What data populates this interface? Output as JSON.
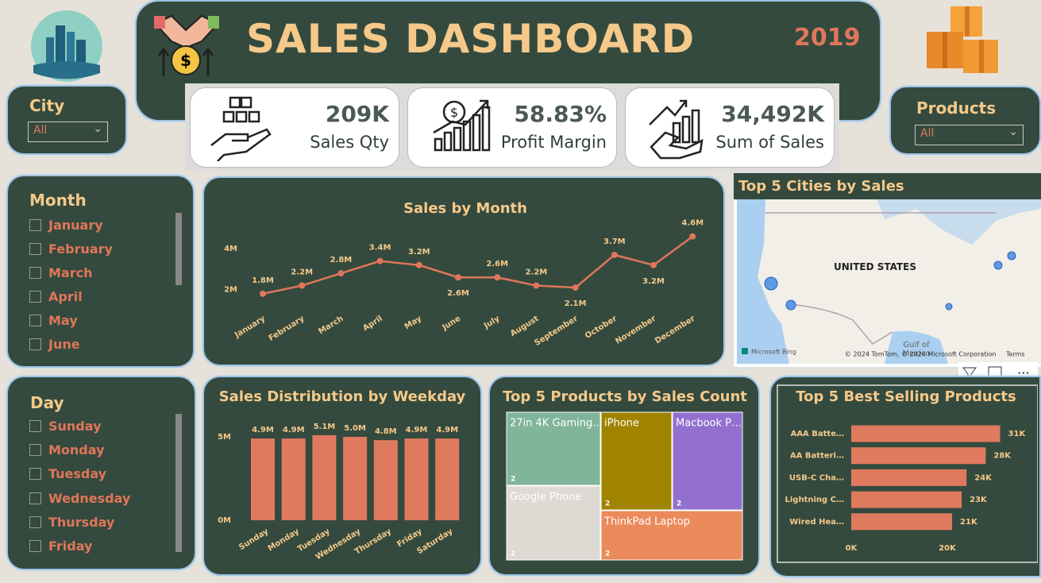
{
  "header": {
    "title": "SALES DASHBOARD",
    "year": "2019"
  },
  "kpis": [
    {
      "value": "209K",
      "label": "Sales Qty"
    },
    {
      "value": "58.83%",
      "label": "Profit Margin"
    },
    {
      "value": "34,492K",
      "label": "Sum of Sales"
    }
  ],
  "filters": {
    "city": {
      "title": "City",
      "selected": "All"
    },
    "products": {
      "title": "Products",
      "selected": "All"
    },
    "month": {
      "title": "Month",
      "options": [
        "January",
        "February",
        "March",
        "April",
        "May",
        "June"
      ]
    },
    "day": {
      "title": "Day",
      "options": [
        "Sunday",
        "Monday",
        "Tuesday",
        "Wednesday",
        "Thursday",
        "Friday"
      ]
    }
  },
  "map": {
    "title": "Top 5 Cities by Sales",
    "country": "UNITED STATES",
    "water": "Gulf of",
    "water2": "Mexico",
    "attribution": "© 2024 TomTom, © 2024 Microsoft Corporation",
    "terms": "Terms",
    "provider": "Microsoft Bing"
  },
  "chart_data": [
    {
      "type": "line",
      "title": "Sales by Month",
      "color": "#e0765a",
      "categories": [
        "January",
        "February",
        "March",
        "April",
        "May",
        "June",
        "July",
        "August",
        "September",
        "October",
        "November",
        "December"
      ],
      "values": [
        1.8,
        2.2,
        2.8,
        3.4,
        3.2,
        2.6,
        2.6,
        2.2,
        2.1,
        3.7,
        3.2,
        4.6
      ],
      "value_labels": [
        "1.8M",
        "2.2M",
        "2.8M",
        "3.4M",
        "3.2M",
        "2.6M",
        "2.6M",
        "2.2M",
        "2.1M",
        "3.7M",
        "3.2M",
        "4.6M"
      ],
      "ylim": [
        1.6,
        4.9
      ],
      "yticks": [
        {
          "value": 2,
          "label": "2M"
        },
        {
          "value": 4,
          "label": "4M"
        }
      ]
    },
    {
      "type": "bar",
      "title": "Sales Distribution by Weekday",
      "color": "#e07a5f",
      "categories": [
        "Sunday",
        "Monday",
        "Tuesday",
        "Wednesday",
        "Thursday",
        "Friday",
        "Saturday"
      ],
      "values": [
        4.9,
        4.9,
        5.1,
        5.0,
        4.8,
        4.9,
        4.9
      ],
      "value_labels": [
        "4.9M",
        "4.9M",
        "5.1M",
        "5.0M",
        "4.8M",
        "4.9M",
        "4.9M"
      ],
      "ylim": [
        0,
        5.5
      ],
      "yticks": [
        {
          "value": 0,
          "label": "0M"
        },
        {
          "value": 5,
          "label": "5M"
        }
      ]
    },
    {
      "type": "treemap",
      "title": "Top 5 Products by Sales Count",
      "categories": [
        "27in 4K Gaming…",
        "Google Phone",
        "iPhone",
        "Macbook P…",
        "ThinkPad Laptop"
      ],
      "values": [
        2,
        2,
        2,
        2,
        2
      ],
      "colors": [
        "#80b59a",
        "#dcdad2",
        "#a08400",
        "#9370d0",
        "#eb8a5a"
      ]
    },
    {
      "type": "hbar",
      "title": "Top 5 Best Selling Products",
      "color": "#e07a5f",
      "categories": [
        "AAA Batte…",
        "AA Batteri…",
        "USB-C Cha…",
        "Lightning C…",
        "Wired Hea…"
      ],
      "values": [
        31,
        28,
        24,
        23,
        21
      ],
      "value_labels": [
        "31K",
        "28K",
        "24K",
        "23K",
        "21K"
      ],
      "xlim": [
        0,
        32
      ],
      "xticks": [
        {
          "value": 0,
          "label": "0K"
        },
        {
          "value": 20,
          "label": "20K"
        }
      ]
    }
  ]
}
